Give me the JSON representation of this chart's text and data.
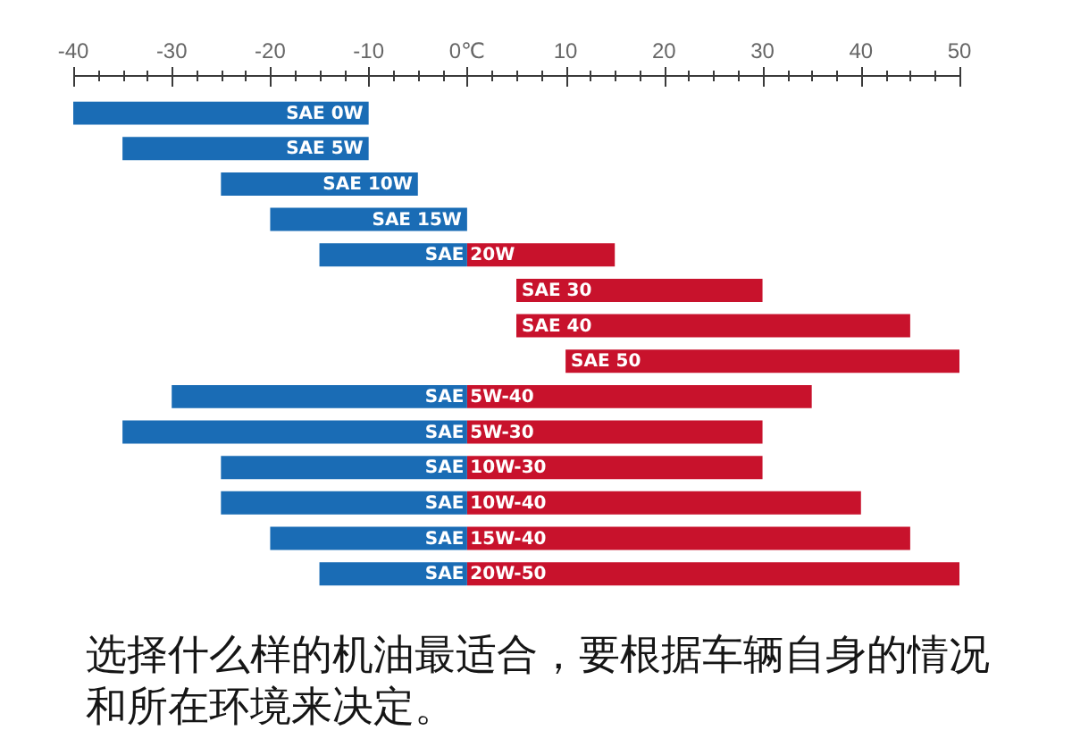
{
  "chart_data": {
    "type": "bar",
    "orientation": "horizontal",
    "categories": [
      "SAE 0W",
      "SAE 5W",
      "SAE 10W",
      "SAE 15W",
      "SAE 20W",
      "SAE 30",
      "SAE 40",
      "SAE 50",
      "SAE 5W-40",
      "SAE 5W-30",
      "SAE 10W-30",
      "SAE 10W-40",
      "SAE 15W-40",
      "SAE 20W-50"
    ],
    "series": [
      {
        "color": "#1a6cb5",
        "base": [
          -40,
          -35,
          -25,
          -20,
          -15,
          null,
          null,
          null,
          -30,
          -35,
          -25,
          -25,
          -20,
          -15
        ],
        "values": [
          30,
          25,
          20,
          20,
          15,
          null,
          null,
          null,
          30,
          35,
          25,
          25,
          20,
          15
        ]
      },
      {
        "color": "#c8122c",
        "base": [
          null,
          null,
          null,
          null,
          0,
          5,
          5,
          10,
          0,
          0,
          0,
          0,
          0,
          0
        ],
        "values": [
          null,
          null,
          null,
          null,
          15,
          25,
          40,
          40,
          35,
          30,
          30,
          40,
          45,
          50
        ]
      }
    ],
    "xlim": [
      -40,
      50
    ],
    "xticks": [
      -40,
      {
        "value": -37.5,
        "label": null
      },
      {
        "value": -35,
        "label": null
      },
      {
        "value": -32.5,
        "label": null
      },
      -30,
      {
        "value": -27.5,
        "label": null
      },
      {
        "value": -25,
        "label": null
      },
      {
        "value": -22.5,
        "label": null
      },
      -20,
      {
        "value": -17.5,
        "label": null
      },
      {
        "value": -15,
        "label": null
      },
      {
        "value": -12.5,
        "label": null
      },
      -10,
      {
        "value": -7.5,
        "label": null
      },
      {
        "value": -5,
        "label": null
      },
      {
        "value": -2.5,
        "label": null
      },
      {
        "value": 0,
        "label": "0℃"
      },
      {
        "value": 2.5,
        "label": null
      },
      {
        "value": 5,
        "label": null
      },
      {
        "value": 7.5,
        "label": null
      },
      10,
      {
        "value": 12.5,
        "label": null
      },
      {
        "value": 15,
        "label": null
      },
      {
        "value": 17.5,
        "label": null
      },
      20,
      {
        "value": 22.5,
        "label": null
      },
      {
        "value": 25,
        "label": null
      },
      {
        "value": 27.5,
        "label": null
      },
      30,
      {
        "value": 32.5,
        "label": null
      },
      {
        "value": 35,
        "label": null
      },
      {
        "value": 37.5,
        "label": null
      },
      40,
      {
        "value": 42.5,
        "label": null
      },
      {
        "value": 45,
        "label": null
      },
      {
        "value": 47.5,
        "label": null
      },
      50
    ],
    "grid": false,
    "legend": false,
    "annotations": [
      "选择什么样的机油最适合，要根据车辆自身的情况和所在环境来决定。"
    ]
  }
}
